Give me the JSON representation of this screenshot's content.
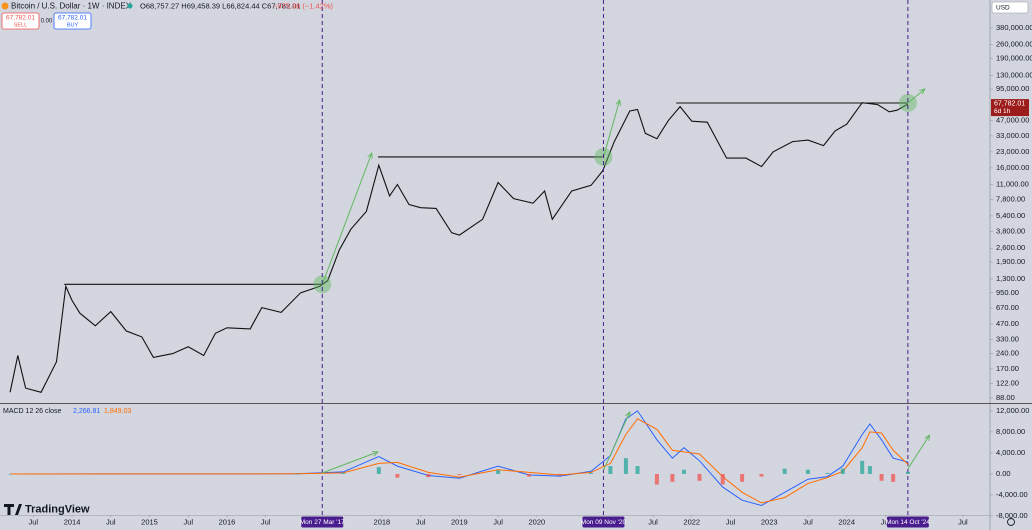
{
  "header": {
    "symbol": "Bitcoin / U.S. Dollar · 1W · INDEX",
    "ohlc": "O68,757.27 H69,458.39 L66,824.44 C67,782.01",
    "change": "−975.96 (−1.42%)",
    "sell_price": "67,782.01",
    "sell": "SELL",
    "spread": "0.00",
    "buy_price": "67,782.01",
    "buy": "BUY",
    "currency": "USD",
    "last_price": "67,782.01",
    "countdown": "6d 1h",
    "brand": "TradingView"
  },
  "chart_data": [
    {
      "type": "line",
      "log_scale": true,
      "color": "#111111",
      "x": [
        2013.2,
        2013.3,
        2013.4,
        2013.6,
        2013.8,
        2013.92,
        2014.0,
        2014.1,
        2014.3,
        2014.5,
        2014.7,
        2014.9,
        2015.05,
        2015.3,
        2015.5,
        2015.7,
        2015.85,
        2016.0,
        2016.3,
        2016.45,
        2016.7,
        2016.95,
        2017.2,
        2017.3,
        2017.45,
        2017.6,
        2017.8,
        2017.96,
        2018.1,
        2018.2,
        2018.35,
        2018.5,
        2018.7,
        2018.9,
        2019.0,
        2019.3,
        2019.5,
        2019.7,
        2019.95,
        2020.1,
        2020.2,
        2020.45,
        2020.7,
        2020.85,
        2021.0,
        2021.2,
        2021.3,
        2021.4,
        2021.55,
        2021.7,
        2021.85,
        2022.0,
        2022.2,
        2022.45,
        2022.7,
        2022.9,
        2023.05,
        2023.3,
        2023.5,
        2023.7,
        2023.85,
        2024.0,
        2024.2,
        2024.4,
        2024.55,
        2024.65,
        2024.79
      ],
      "values": [
        100,
        230,
        110,
        100,
        200,
        1100,
        800,
        600,
        450,
        620,
        400,
        350,
        220,
        240,
        280,
        230,
        380,
        430,
        420,
        680,
        610,
        950,
        1100,
        1250,
        2500,
        4000,
        6000,
        17000,
        8500,
        11000,
        7000,
        6500,
        6400,
        3700,
        3500,
        5000,
        11500,
        8000,
        7200,
        9500,
        5000,
        9500,
        10800,
        15000,
        29000,
        58000,
        60000,
        35000,
        31000,
        47000,
        64000,
        46000,
        45000,
        20000,
        20000,
        16500,
        23000,
        29000,
        30000,
        26500,
        37000,
        43000,
        70000,
        67000,
        57000,
        59000,
        67782.01
      ],
      "xlim": [
        2013.07,
        2025.85
      ],
      "xticks": [
        {
          "value": 2013.5,
          "label": "Jul"
        },
        2014,
        {
          "value": 2014.5,
          "label": "Jul"
        },
        2015,
        {
          "value": 2015.5,
          "label": "Jul"
        },
        2016,
        {
          "value": 2016.5,
          "label": "Jul"
        },
        2018,
        {
          "value": 2018.5,
          "label": "Jul"
        },
        2019,
        {
          "value": 2019.5,
          "label": "Jul"
        },
        2020,
        {
          "value": 2021.5,
          "label": "Jul"
        },
        2022,
        {
          "value": 2022.5,
          "label": "Jul"
        },
        2023,
        {
          "value": 2023.5,
          "label": "Jul"
        },
        2024,
        {
          "value": 2024.5,
          "label": "Jul"
        },
        {
          "value": 2025.5,
          "label": "Jul"
        }
      ],
      "ylim": [
        78.5,
        714000
      ],
      "yticks": [
        {
          "value": 380000,
          "label": "380,000.00"
        },
        {
          "value": 260000,
          "label": "260,000.00"
        },
        {
          "value": 190000,
          "label": "190,000.00"
        },
        {
          "value": 130000,
          "label": "130,000.00"
        },
        {
          "value": 95000,
          "label": "95,000.00"
        },
        {
          "value": 47000,
          "label": "47,000.00"
        },
        {
          "value": 33000,
          "label": "33,000.00"
        },
        {
          "value": 23000,
          "label": "23,000.00"
        },
        {
          "value": 16000,
          "label": "16,000.00"
        },
        {
          "value": 11000,
          "label": "11,000.00"
        },
        {
          "value": 7800,
          "label": "7,800.00"
        },
        {
          "value": 5400,
          "label": "5,400.00"
        },
        {
          "value": 3800,
          "label": "3,800.00"
        },
        {
          "value": 2600,
          "label": "2,600.00"
        },
        {
          "value": 1900,
          "label": "1,900.00"
        },
        {
          "value": 1300,
          "label": "1,300.00"
        },
        {
          "value": 950,
          "label": "950.00"
        },
        {
          "value": 670,
          "label": "670.00"
        },
        {
          "value": 470,
          "label": "470.00"
        },
        {
          "value": 330,
          "label": "330.00"
        },
        {
          "value": 240,
          "label": "240.00"
        },
        {
          "value": 170,
          "label": "170.00"
        },
        {
          "value": 122,
          "label": "122.00"
        },
        {
          "value": 88,
          "label": "88.00"
        }
      ],
      "markers": [
        {
          "label": "Mon 27 Mar '17",
          "x": 2017.23
        },
        {
          "label": "Mon 09 Nov '20",
          "x": 2020.86
        },
        {
          "label": "Mon 14 Oct '24",
          "x": 2024.79
        }
      ],
      "marker_color": "#4a1d8f",
      "levels": [
        {
          "x": [
            2013.9,
            2017.22
          ],
          "value": 1150
        },
        {
          "x": [
            2017.95,
            2020.85
          ],
          "value": 20500
        },
        {
          "x": [
            2021.8,
            2024.79
          ],
          "value": 69500
        }
      ],
      "arrow_color": "#5fb85f",
      "arrows": [
        {
          "x": [
            2017.23,
            2017.87
          ],
          "values": [
            1150,
            22400
          ]
        },
        {
          "x": [
            2020.86,
            2021.07
          ],
          "values": [
            20500,
            74300
          ]
        },
        {
          "x": [
            2024.79,
            2025.01
          ],
          "values": [
            69500,
            95300
          ]
        }
      ]
    },
    {
      "type": "macd",
      "title": "MACD 12 26 close",
      "x": [
        2013.2,
        2016.9,
        2017.5,
        2017.96,
        2018.2,
        2018.6,
        2019.0,
        2019.5,
        2019.9,
        2020.3,
        2020.7,
        2020.95,
        2021.15,
        2021.3,
        2021.55,
        2021.75,
        2021.9,
        2022.1,
        2022.4,
        2022.65,
        2022.9,
        2023.2,
        2023.5,
        2023.75,
        2023.95,
        2024.2,
        2024.3,
        2024.45,
        2024.6,
        2024.79
      ],
      "series": [
        {
          "type": "line",
          "color": "#2962ff",
          "last_label": "2,266.81",
          "values": [
            0,
            30,
            400,
            3300,
            1500,
            -300,
            -800,
            1500,
            -200,
            -400,
            500,
            3500,
            10500,
            12000,
            6500,
            3000,
            5000,
            2500,
            -2500,
            -5000,
            -6000,
            -3500,
            -1000,
            -500,
            1500,
            7500,
            9500,
            6500,
            3000,
            2266.81
          ]
        },
        {
          "type": "line",
          "color": "#ff6d00",
          "last_label": "1,849.03",
          "values": [
            0,
            20,
            200,
            2000,
            2200,
            300,
            -600,
            800,
            300,
            -200,
            300,
            2000,
            7500,
            10500,
            8500,
            4500,
            4200,
            3800,
            -500,
            -3500,
            -5500,
            -4500,
            -1800,
            -700,
            500,
            5000,
            8000,
            7800,
            4500,
            1849.03
          ]
        },
        {
          "type": "bar",
          "colors": [
            "#26a69a",
            "#ef5350"
          ],
          "values": [
            0,
            10,
            200,
            1300,
            -700,
            -600,
            -200,
            700,
            -500,
            -200,
            200,
            1500,
            3000,
            1500,
            -2000,
            -1500,
            800,
            -1300,
            -2000,
            -1500,
            -500,
            1000,
            800,
            200,
            1000,
            2500,
            1500,
            -1300,
            -1500,
            417.78
          ]
        }
      ],
      "ylim": [
        -8000,
        13500
      ],
      "yticks": [
        {
          "value": 12000,
          "label": "12,000.00"
        },
        {
          "value": 8000,
          "label": "8,000.00"
        },
        {
          "value": 4000,
          "label": "4,000.00"
        },
        {
          "value": 0,
          "label": "0.00"
        },
        {
          "value": -4000,
          "label": "-4,000.00"
        },
        {
          "value": -8000,
          "label": "-8,000.00"
        }
      ],
      "arrows": [
        {
          "x": [
            2017.23,
            2017.95
          ],
          "values": [
            200,
            4190
          ]
        },
        {
          "x": [
            2020.86,
            2021.2
          ],
          "values": [
            700,
            11800
          ]
        },
        {
          "x": [
            2024.79,
            2025.07
          ],
          "values": [
            1000,
            7400
          ]
        }
      ]
    }
  ]
}
